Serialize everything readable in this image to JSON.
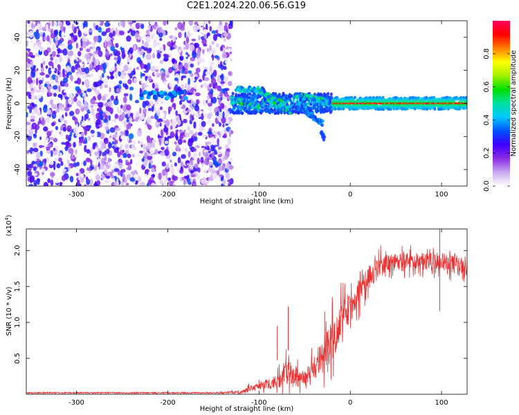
{
  "figure": {
    "title": "C2E1.2024.220.06.56.G19"
  },
  "chart_data": [
    {
      "type": "heatmap",
      "title": "",
      "xlabel": "Height of straight line (km)",
      "ylabel": "Frequency (Hz)",
      "xlim": [
        -355,
        128
      ],
      "ylim": [
        -50,
        50
      ],
      "x_ticks": [
        -300,
        -200,
        -100,
        0,
        100
      ],
      "y_ticks": [
        -40,
        -20,
        0,
        20,
        40
      ],
      "colorbar": {
        "label": "Normalized spectral amplitude",
        "range": [
          0,
          1
        ],
        "ticks": [
          "0.0",
          "0.2",
          "0.4",
          "0.6",
          "0.8"
        ],
        "tick_values": [
          0.0,
          0.2,
          0.4,
          0.6,
          0.8
        ],
        "colors": [
          "#ffffff",
          "#c9a8f0",
          "#8a2be2",
          "#3f00ff",
          "#0050ff",
          "#00c8ff",
          "#00e0a0",
          "#00e000",
          "#a0f000",
          "#ffff00",
          "#ff8000",
          "#ff0000",
          "#ff0060"
        ]
      },
      "features": {
        "noise_region_x": [
          -355,
          -130
        ],
        "signal_center_hz": 0,
        "strong_signal_from_x": -20
      }
    },
    {
      "type": "line",
      "title": "",
      "xlabel": "Height of straight line (km)",
      "ylabel": "SNR (10 * v/v)",
      "y_multiplier": "(x10^4)",
      "xlim": [
        -355,
        128
      ],
      "ylim": [
        0,
        2.3
      ],
      "x_ticks": [
        -300,
        -200,
        -100,
        0,
        100
      ],
      "y_ticks": [
        0.5,
        1.0,
        1.5,
        2.0
      ],
      "y_tick_labels": [
        "0.5",
        "1.0",
        "1.5",
        "2.0"
      ],
      "color": "#e83030",
      "envelope": {
        "x": [
          -355,
          -150,
          -120,
          -100,
          -90,
          -80,
          -70,
          -60,
          -50,
          -40,
          -30,
          -20,
          -10,
          0,
          10,
          20,
          30,
          40,
          60,
          80,
          100,
          128
        ],
        "y_mean": [
          0.02,
          0.02,
          0.03,
          0.12,
          0.15,
          0.18,
          0.3,
          0.25,
          0.2,
          0.35,
          0.55,
          0.7,
          1.05,
          1.2,
          1.45,
          1.62,
          1.75,
          1.82,
          1.85,
          1.85,
          1.85,
          1.75
        ],
        "y_spread": [
          0.01,
          0.01,
          0.02,
          0.06,
          0.08,
          0.1,
          0.2,
          0.15,
          0.12,
          0.2,
          0.25,
          0.3,
          0.25,
          0.22,
          0.2,
          0.18,
          0.15,
          0.12,
          0.12,
          0.12,
          0.12,
          0.12
        ]
      },
      "peaks": [
        {
          "x": -80,
          "y": 0.95
        },
        {
          "x": -68,
          "y": 1.22
        },
        {
          "x": -28,
          "y": 1.15
        },
        {
          "x": 98,
          "y": 2.32
        }
      ]
    }
  ]
}
